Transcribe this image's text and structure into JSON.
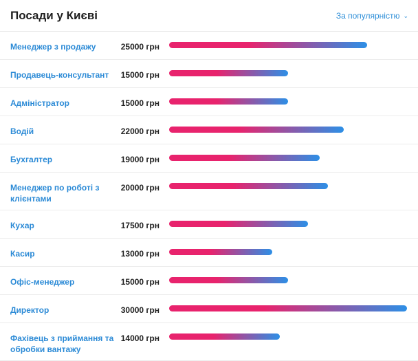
{
  "header": {
    "title": "Посади у Києві",
    "sort_label": "За популярністю"
  },
  "max_salary": 30000,
  "rows": [
    {
      "name": "Менеджер з продажу",
      "salary": 25000,
      "salary_text": "25000 грн"
    },
    {
      "name": "Продавець-консультант",
      "salary": 15000,
      "salary_text": "15000 грн"
    },
    {
      "name": "Адміністратор",
      "salary": 15000,
      "salary_text": "15000 грн"
    },
    {
      "name": "Водій",
      "salary": 22000,
      "salary_text": "22000 грн"
    },
    {
      "name": "Бухгалтер",
      "salary": 19000,
      "salary_text": "19000 грн"
    },
    {
      "name": "Менеджер по роботі з клієнтами",
      "salary": 20000,
      "salary_text": "20000 грн"
    },
    {
      "name": "Кухар",
      "salary": 17500,
      "salary_text": "17500 грн"
    },
    {
      "name": "Касир",
      "salary": 13000,
      "salary_text": "13000 грн"
    },
    {
      "name": "Офіс-менеджер",
      "salary": 15000,
      "salary_text": "15000 грн"
    },
    {
      "name": "Директор",
      "salary": 30000,
      "salary_text": "30000 грн"
    },
    {
      "name": "Фахівець з приймання та обробки вантажу",
      "salary": 14000,
      "salary_text": "14000 грн"
    }
  ]
}
